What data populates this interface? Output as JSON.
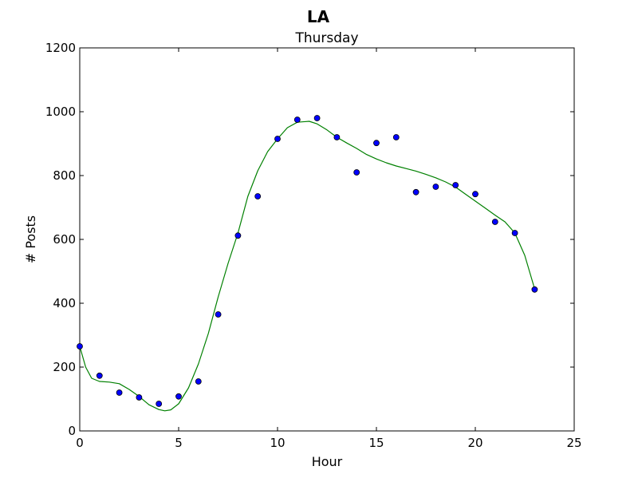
{
  "chart_data": {
    "type": "scatter",
    "suptitle": "LA",
    "title": "Thursday",
    "xlabel": "Hour",
    "ylabel": "# Posts",
    "xlim": [
      0,
      25
    ],
    "ylim": [
      0,
      1200
    ],
    "xticks": [
      0,
      5,
      10,
      15,
      20,
      25
    ],
    "yticks": [
      0,
      200,
      400,
      600,
      800,
      1000,
      1200
    ],
    "grid": false,
    "series": [
      {
        "kind": "scatter",
        "color": "#0000ff",
        "x": [
          0,
          1,
          2,
          3,
          4,
          5,
          6,
          7,
          8,
          9,
          10,
          11,
          12,
          13,
          14,
          15,
          16,
          17,
          18,
          19,
          20,
          21,
          22,
          23
        ],
        "y": [
          265,
          173,
          120,
          105,
          85,
          108,
          155,
          365,
          612,
          735,
          915,
          975,
          980,
          920,
          810,
          902,
          920,
          748,
          765,
          770,
          742,
          655,
          620,
          443
        ]
      },
      {
        "kind": "line",
        "color": "#008000",
        "x": [
          0,
          0.3,
          0.6,
          1,
          1.5,
          2,
          2.5,
          3,
          3.5,
          4,
          4.3,
          4.6,
          5,
          5.5,
          6,
          6.5,
          7,
          7.5,
          8,
          8.5,
          9,
          9.5,
          10,
          10.5,
          11,
          11.6,
          12,
          12.5,
          13,
          13.5,
          14,
          14.5,
          15,
          15.5,
          16,
          16.5,
          17,
          17.5,
          18,
          18.5,
          19,
          19.5,
          20,
          20.5,
          21,
          21.5,
          22,
          22.5,
          23
        ],
        "y": [
          265,
          200,
          165,
          155,
          153,
          148,
          130,
          108,
          82,
          67,
          63,
          66,
          85,
          135,
          210,
          305,
          420,
          525,
          620,
          735,
          815,
          875,
          915,
          950,
          967,
          970,
          962,
          943,
          920,
          902,
          885,
          866,
          852,
          840,
          830,
          822,
          814,
          804,
          793,
          780,
          764,
          742,
          720,
          698,
          676,
          655,
          620,
          550,
          445
        ]
      }
    ]
  }
}
